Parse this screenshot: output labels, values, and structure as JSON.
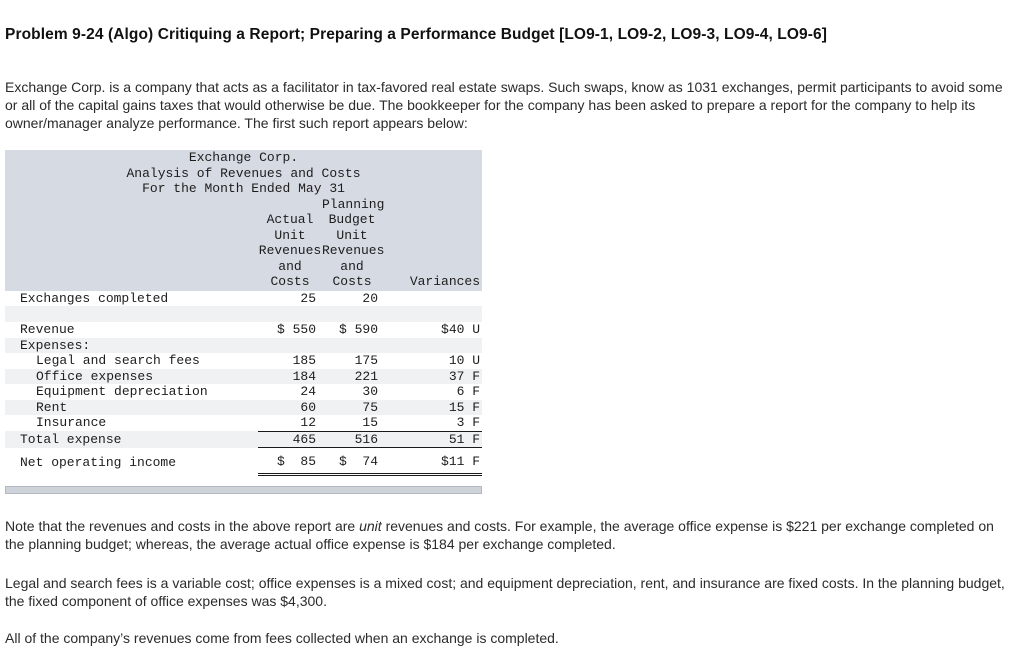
{
  "colors": {
    "table_header_bg": "#d6dae3",
    "row_stripe_bg": "#f0f1f3"
  },
  "header": {
    "title": "Problem 9-24 (Algo) Critiquing a Report; Preparing a Performance Budget [LO9-1, LO9-2, LO9-3, LO9-4, LO9-6]"
  },
  "intro_paragraph": "Exchange Corp. is a company that acts as a facilitator in tax-favored real estate swaps. Such swaps, know as 1031 exchanges, permit participants to avoid some or all of the capital gains taxes that would otherwise be due. The bookkeeper for the company has been asked to prepare a report for the company to help its owner/manager analyze performance. The first such report appears below:",
  "report": {
    "title_lines": [
      "Exchange Corp.",
      "Analysis of Revenues and Costs",
      "For the Month Ended May 31"
    ],
    "col_headers": {
      "label": "",
      "actual": "Actual\nUnit\nRevenues\nand\nCosts",
      "budget": "Planning\nBudget\nUnit\nRevenues\nand\nCosts",
      "variance": "Variances"
    },
    "rows": [
      {
        "label": "Exchanges completed",
        "actual": "25",
        "budget": "20",
        "variance": ""
      },
      {
        "label": "",
        "actual": "",
        "budget": "",
        "variance": ""
      },
      {
        "label": "Revenue",
        "actual": "$ 550",
        "budget": "$ 590",
        "variance": "$40 U"
      },
      {
        "label": "Expenses:",
        "actual": "",
        "budget": "",
        "variance": ""
      },
      {
        "label": "Legal and search fees",
        "actual": "185",
        "budget": "175",
        "variance": "10 U"
      },
      {
        "label": "Office expenses",
        "actual": "184",
        "budget": "221",
        "variance": "37 F"
      },
      {
        "label": "Equipment depreciation",
        "actual": "24",
        "budget": "30",
        "variance": "6 F"
      },
      {
        "label": "Rent",
        "actual": "60",
        "budget": "75",
        "variance": "15 F"
      },
      {
        "label": "Insurance",
        "actual": "12",
        "budget": "15",
        "variance": "3 F"
      },
      {
        "label": "Total expense",
        "actual": "465",
        "budget": "516",
        "variance": "51 F"
      },
      {
        "label": "Net operating income",
        "actual": "$  85",
        "budget": "$  74",
        "variance": "$11 F"
      }
    ]
  },
  "note_paragraph": {
    "pre": "Note that the revenues and costs in the above report are ",
    "italic": "unit",
    "post": " revenues and costs. For example, the average office expense is $221 per exchange completed on the planning budget; whereas, the average actual office expense is $184 per exchange completed."
  },
  "legal_paragraph": "Legal and search fees is a variable cost; office expenses is a mixed cost; and equipment depreciation, rent, and insurance are fixed costs. In the planning budget, the fixed component of office expenses was $4,300.",
  "final_paragraph": "All of the company’s revenues come from fees collected when an exchange is completed."
}
